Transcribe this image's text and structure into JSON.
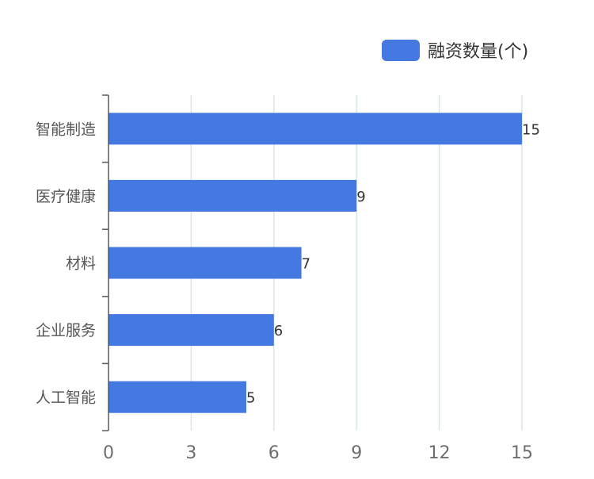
{
  "chart_data": {
    "type": "bar",
    "orientation": "horizontal",
    "categories": [
      "智能制造",
      "医疗健康",
      "材料",
      "企业服务",
      "人工智能"
    ],
    "series": [
      {
        "name": "融资数量(个)",
        "values": [
          15,
          9,
          7,
          6,
          5
        ],
        "color": "#4479e1"
      }
    ],
    "xlim": [
      0,
      15
    ],
    "xticks": [
      0,
      3,
      6,
      9,
      12,
      15
    ],
    "grid": "vertical",
    "legend_position": "top-right",
    "data_labels": true
  },
  "colors": {
    "bar": "#4479e1",
    "grid": "#d9e6ea",
    "axis": "#5a5a5a",
    "tick_text": "#6e6e6e",
    "category_text": "#555555",
    "label_text": "#333333"
  }
}
